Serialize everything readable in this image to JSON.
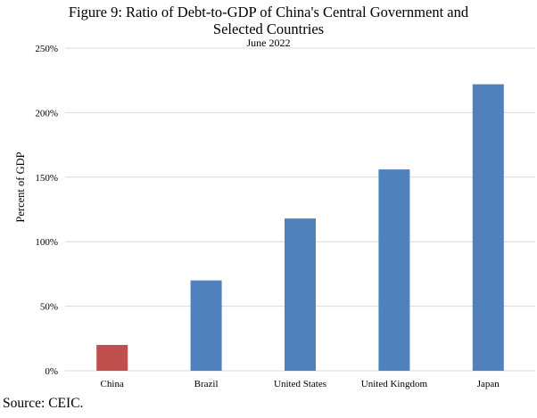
{
  "chart_data": {
    "type": "bar",
    "title": "Figure 9:  Ratio of Debt-to-GDP of China's Central Government and Selected Countries",
    "title_lines": [
      "Figure 9:  Ratio of Debt-to-GDP of China's Central Government and",
      "Selected Countries"
    ],
    "subtitle": "June 2022",
    "ylabel": "Percent of GDP",
    "xlabel": "",
    "categories": [
      "China",
      "Brazil",
      "United States",
      "United Kingdom",
      "Japan"
    ],
    "values": [
      20,
      70,
      118,
      156,
      222
    ],
    "ylim": [
      0,
      250
    ],
    "yticks": [
      0,
      50,
      100,
      150,
      200,
      250
    ],
    "ytick_labels": [
      "0%",
      "50%",
      "100%",
      "150%",
      "200%",
      "250%"
    ],
    "grid": true,
    "legend": "none",
    "colors": {
      "China": "#c0504d",
      "default": "#4f81bd",
      "grid": "#d9d9d9"
    }
  },
  "source": "Source: CEIC."
}
